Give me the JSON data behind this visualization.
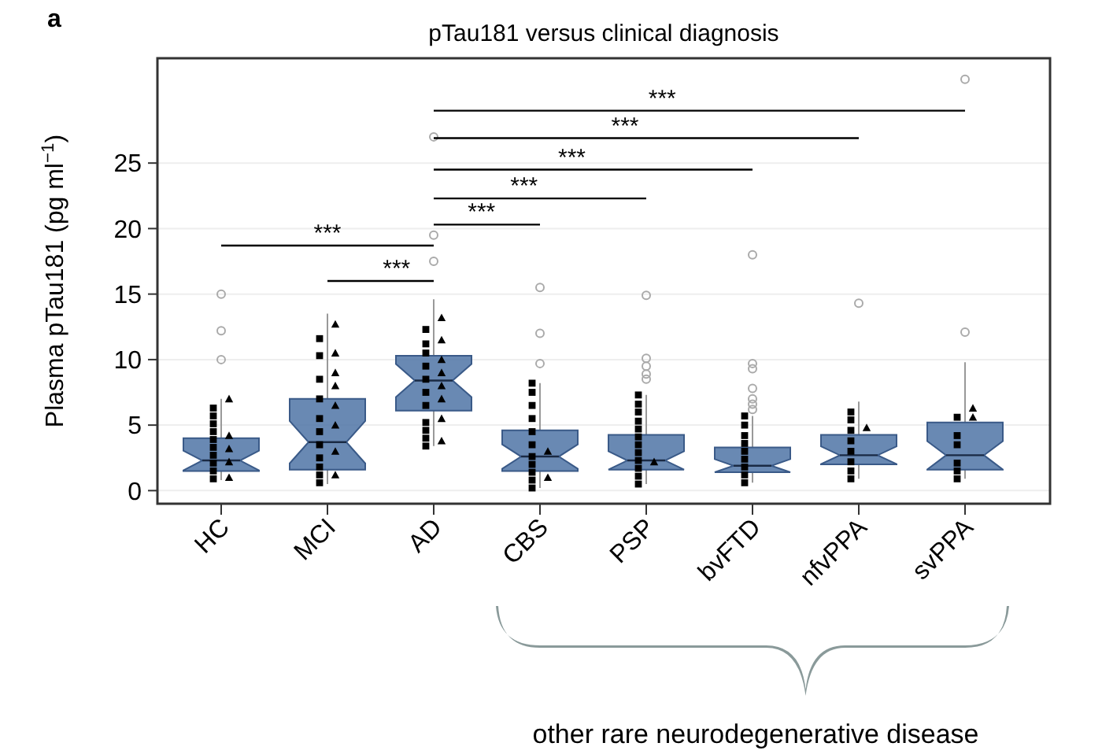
{
  "chart_data": {
    "type": "box",
    "title": "pTau181 versus clinical diagnosis",
    "ylabel": "Plasma pTau181 (pg ml$^{−1}$)",
    "categories": [
      "HC",
      "MCI",
      "AD",
      "CBS",
      "PSP",
      "bvFTD",
      "nfvPPA",
      "svPPA"
    ],
    "ylim": [
      -1,
      33
    ],
    "yticks": [
      0,
      5,
      10,
      15,
      20,
      25
    ],
    "grid": "y",
    "series": [
      {
        "type": "box",
        "color": "#4f74a6",
        "boxes": [
          {
            "low": 0.8,
            "q1": 1.5,
            "median": 2.3,
            "q3": 4.0,
            "high": 7.0,
            "outliers": [
              10,
              12.2,
              15
            ]
          },
          {
            "low": 0.5,
            "q1": 1.6,
            "median": 3.7,
            "q3": 7.0,
            "high": 13.5
          },
          {
            "low": 3.4,
            "q1": 6.1,
            "median": 8.4,
            "q3": 10.3,
            "high": 14.6,
            "outliers": [
              17.5,
              19.5,
              27
            ]
          },
          {
            "low": 0.2,
            "q1": 1.5,
            "median": 2.6,
            "q3": 4.6,
            "high": 8.2,
            "outliers": [
              9.7,
              12,
              15.5
            ]
          },
          {
            "low": 0.5,
            "q1": 1.6,
            "median": 2.3,
            "q3": 4.25,
            "high": 7.3,
            "outliers": [
              8.5,
              8.9,
              9.5,
              10.1,
              14.9
            ]
          },
          {
            "low": 0.6,
            "q1": 1.4,
            "median": 1.9,
            "q3": 3.3,
            "high": 5.7,
            "outliers": [
              6.2,
              6.6,
              7.0,
              7.8,
              9.3,
              9.7,
              18
            ]
          },
          {
            "low": 0.9,
            "q1": 2.0,
            "median": 2.7,
            "q3": 4.25,
            "high": 6.8,
            "outliers": [
              14.3
            ]
          },
          {
            "low": 0.9,
            "q1": 1.6,
            "median": 2.7,
            "q3": 5.2,
            "high": 9.8,
            "outliers": [
              12.1,
              31.4
            ]
          }
        ]
      },
      {
        "type": "scatter",
        "marker": "square",
        "color": "#000000",
        "x": [
          "HC",
          "HC",
          "HC",
          "HC",
          "HC",
          "HC",
          "HC",
          "HC",
          "HC",
          "HC",
          "MCI",
          "MCI",
          "MCI",
          "MCI",
          "MCI",
          "MCI",
          "MCI",
          "MCI",
          "MCI",
          "MCI",
          "MCI",
          "AD",
          "AD",
          "AD",
          "AD",
          "AD",
          "AD",
          "AD",
          "AD",
          "AD",
          "AD",
          "AD",
          "CBS",
          "CBS",
          "CBS",
          "CBS",
          "CBS",
          "CBS",
          "CBS",
          "CBS",
          "CBS",
          "CBS",
          "CBS",
          "PSP",
          "PSP",
          "PSP",
          "PSP",
          "PSP",
          "PSP",
          "PSP",
          "PSP",
          "PSP",
          "PSP",
          "PSP",
          "PSP",
          "bvFTD",
          "bvFTD",
          "bvFTD",
          "bvFTD",
          "bvFTD",
          "bvFTD",
          "bvFTD",
          "bvFTD",
          "bvFTD",
          "nfvPPA",
          "nfvPPA",
          "nfvPPA",
          "nfvPPA",
          "nfvPPA",
          "nfvPPA",
          "nfvPPA",
          "nfvPPA",
          "svPPA",
          "svPPA",
          "svPPA",
          "svPPA",
          "svPPA",
          "svPPA"
        ],
        "values": [
          0.9,
          1.5,
          2.1,
          2.7,
          3.3,
          3.9,
          4.5,
          5.1,
          5.7,
          6.3,
          0.6,
          1.2,
          1.8,
          2.5,
          3.5,
          4.5,
          5.5,
          7.0,
          8.5,
          10.3,
          11.6,
          3.4,
          4.0,
          4.6,
          5.2,
          6.5,
          7.5,
          8.5,
          9.5,
          10.5,
          11.2,
          12.3,
          0.2,
          0.8,
          1.4,
          2.0,
          2.6,
          3.5,
          4.5,
          5.5,
          6.5,
          7.5,
          8.2,
          0.5,
          1.1,
          1.7,
          2.3,
          2.9,
          3.5,
          4.1,
          4.7,
          5.3,
          6.0,
          6.6,
          7.3,
          0.6,
          1.2,
          1.8,
          2.4,
          3.0,
          3.6,
          4.2,
          5.0,
          5.7,
          0.9,
          1.5,
          2.2,
          3.0,
          3.8,
          4.6,
          5.4,
          6.0,
          0.9,
          1.5,
          2.1,
          3.5,
          4.2,
          5.6
        ]
      },
      {
        "type": "scatter",
        "marker": "triangle",
        "color": "#000000",
        "x": [
          "HC",
          "HC",
          "HC",
          "HC",
          "HC",
          "MCI",
          "MCI",
          "MCI",
          "MCI",
          "MCI",
          "MCI",
          "MCI",
          "MCI",
          "AD",
          "AD",
          "AD",
          "AD",
          "AD",
          "AD",
          "AD",
          "AD",
          "CBS",
          "CBS",
          "PSP",
          "nfvPPA",
          "svPPA",
          "svPPA"
        ],
        "values": [
          1.0,
          2.2,
          3.2,
          4.2,
          7.0,
          1.2,
          3.0,
          5.0,
          6.5,
          8.0,
          9.0,
          10.5,
          12.7,
          3.8,
          5.5,
          7.0,
          8.0,
          9.0,
          10.0,
          11.5,
          13.2,
          1.0,
          3.0,
          2.2,
          4.8,
          5.6,
          6.3
        ]
      }
    ],
    "annotations": [
      "a",
      "***",
      "***",
      "***",
      "***",
      "***",
      "***",
      "***",
      "other rare neurodegenerative disease"
    ]
  }
}
